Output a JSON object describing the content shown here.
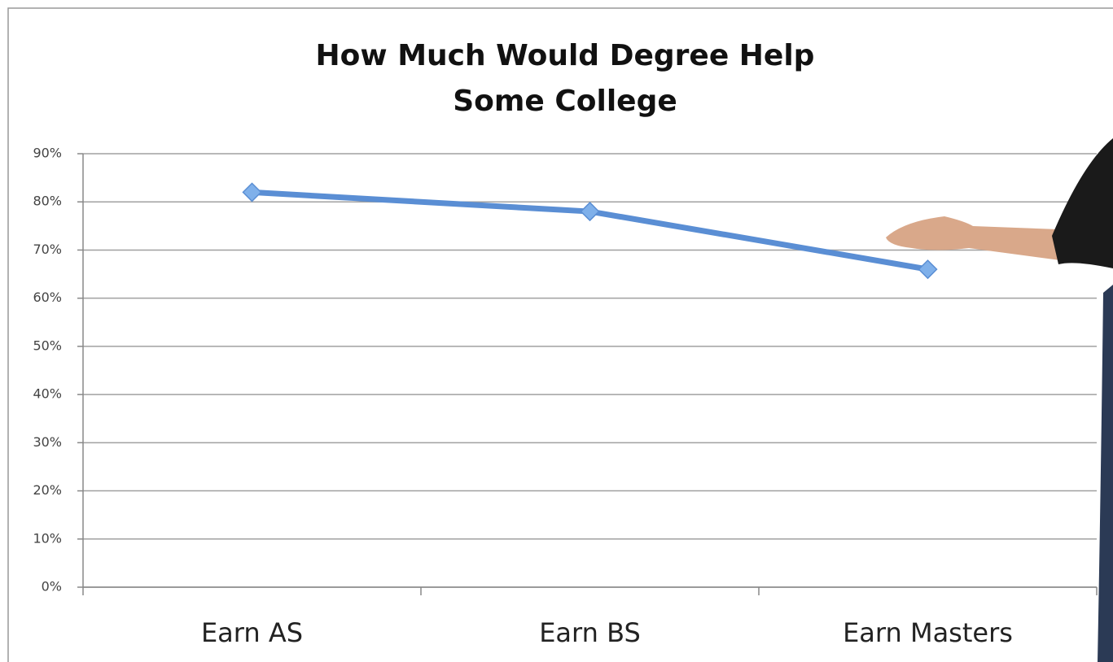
{
  "chart_data": {
    "type": "line",
    "title": [
      "How Much Would Degree Help",
      "Some College"
    ],
    "categories": [
      "Earn AS",
      "Earn BS",
      "Earn Masters"
    ],
    "values": [
      82,
      78,
      66
    ],
    "color": "#5a8ed4",
    "ylim": [
      0,
      90
    ],
    "yticks": [
      {
        "value": 0,
        "label": "0%"
      },
      {
        "value": 10,
        "label": "10%"
      },
      {
        "value": 20,
        "label": "20%"
      },
      {
        "value": 30,
        "label": "30%"
      },
      {
        "value": 40,
        "label": "40%"
      },
      {
        "value": 50,
        "label": "50%"
      },
      {
        "value": 60,
        "label": "60%"
      },
      {
        "value": 70,
        "label": "70%"
      },
      {
        "value": 80,
        "label": "80%"
      },
      {
        "value": 90,
        "label": "90%"
      }
    ],
    "grid": true
  }
}
